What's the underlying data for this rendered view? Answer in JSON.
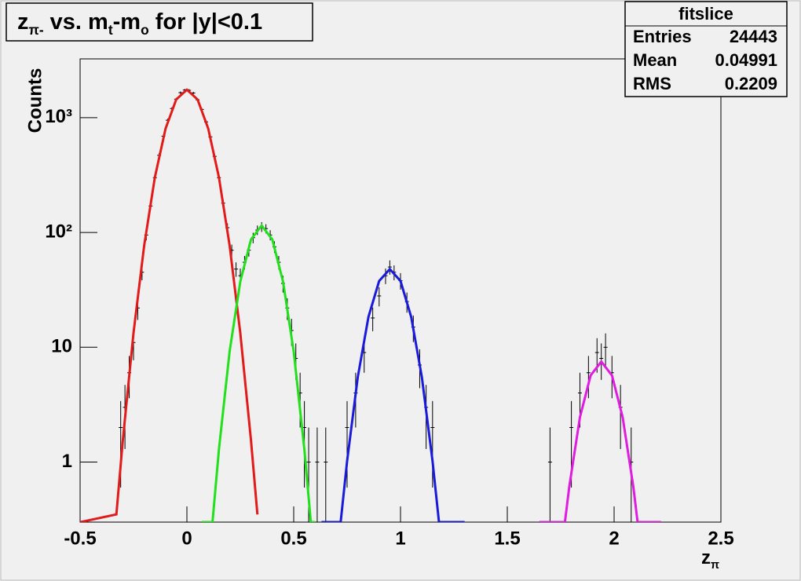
{
  "chart_data": {
    "type": "scatter",
    "title": [
      "z",
      "π-",
      " vs. m",
      "t",
      "-m",
      "o",
      " for |y|<0.1"
    ],
    "title_sub": [
      false,
      true,
      false,
      true,
      false,
      true,
      false
    ],
    "xlabel": [
      "z",
      "π"
    ],
    "xlabel_sub": [
      false,
      true
    ],
    "ylabel": "Counts",
    "xlim": [
      -0.5,
      2.5
    ],
    "ylim": [
      0.3,
      3250
    ],
    "log_y": true,
    "xticks": [
      -0.5,
      0,
      0.5,
      1,
      1.5,
      2,
      2.5
    ],
    "yticks": [
      1,
      10,
      {
        "value": 100,
        "label": "10²"
      },
      {
        "value": 1000,
        "label": "10³"
      }
    ],
    "color": "#000000",
    "x": [
      -0.31,
      -0.29,
      -0.27,
      -0.25,
      -0.23,
      -0.21,
      -0.19,
      -0.17,
      -0.15,
      -0.13,
      -0.11,
      -0.09,
      -0.07,
      -0.05,
      -0.03,
      -0.01,
      0.01,
      0.03,
      0.05,
      0.07,
      0.09,
      0.11,
      0.13,
      0.15,
      0.17,
      0.19,
      0.21,
      0.23,
      0.25,
      0.27,
      0.29,
      0.31,
      0.33,
      0.35,
      0.37,
      0.39,
      0.41,
      0.43,
      0.45,
      0.47,
      0.49,
      0.51,
      0.53,
      0.55,
      0.57,
      0.61,
      0.65,
      0.75,
      0.79,
      0.83,
      0.87,
      0.9,
      0.93,
      0.95,
      0.97,
      1.0,
      1.03,
      1.06,
      1.09,
      1.12,
      1.15,
      1.7,
      1.8,
      1.84,
      1.88,
      1.92,
      1.94,
      1.96,
      1.99,
      2.03,
      2.08
    ],
    "values": [
      2,
      3,
      6,
      11,
      22,
      45,
      95,
      170,
      300,
      470,
      690,
      950,
      1200,
      1450,
      1650,
      1740,
      1730,
      1640,
      1430,
      1180,
      920,
      680,
      460,
      300,
      180,
      110,
      70,
      48,
      42,
      55,
      70,
      90,
      105,
      112,
      108,
      95,
      75,
      55,
      36,
      22,
      14,
      8,
      4,
      2,
      1,
      1,
      1,
      2,
      4,
      9,
      18,
      28,
      42,
      50,
      45,
      38,
      25,
      15,
      7,
      3,
      2,
      1,
      2,
      4,
      6,
      9,
      8,
      10,
      6,
      3,
      1
    ],
    "errors": [
      1.4,
      1.7,
      2.4,
      3.3,
      4.7,
      6.7,
      9.7,
      13,
      17,
      22,
      26,
      31,
      35,
      38,
      41,
      42,
      42,
      40,
      38,
      34,
      30,
      26,
      21,
      17,
      13,
      10,
      8.4,
      6.9,
      6.5,
      7.4,
      8.4,
      9.5,
      10,
      11,
      10,
      9.7,
      8.7,
      7.4,
      6,
      4.7,
      3.7,
      2.8,
      2,
      1.4,
      1,
      1,
      1,
      1.4,
      2,
      3,
      4.2,
      5.3,
      6.5,
      7.1,
      6.7,
      6.2,
      5,
      3.9,
      2.6,
      1.7,
      1.4,
      1,
      1.4,
      2,
      2.4,
      3,
      2.8,
      3.2,
      2.4,
      1.7,
      1
    ],
    "fits": [
      {
        "color": "#e31a1a",
        "x": [
          -0.5,
          -0.33,
          -0.3,
          -0.25,
          -0.2,
          -0.15,
          -0.1,
          -0.05,
          0,
          0.05,
          0.1,
          0.15,
          0.2,
          0.25,
          0.3,
          0.33
        ],
        "values": [
          0.3,
          0.35,
          1.55,
          13.3,
          77,
          302,
          801,
          1440,
          1750,
          1440,
          801,
          302,
          77,
          13.3,
          1.55,
          0.35
        ]
      },
      {
        "color": "#22e01c",
        "x": [
          0.07,
          0.12,
          0.15,
          0.2,
          0.25,
          0.3,
          0.35,
          0.4,
          0.45,
          0.5,
          0.55,
          0.58,
          0.6
        ],
        "values": [
          0.3,
          0.3,
          1.29,
          9.2,
          37.4,
          86.8,
          115,
          86.8,
          37.4,
          9.2,
          1.29,
          0.3,
          0.3
        ]
      },
      {
        "color": "#1a1adc",
        "x": [
          0.63,
          0.72,
          0.75,
          0.8,
          0.85,
          0.9,
          0.95,
          1.0,
          1.05,
          1.1,
          1.15,
          1.18,
          1.3
        ],
        "values": [
          0.3,
          0.3,
          1.02,
          5.5,
          18.4,
          37.8,
          48,
          37.8,
          18.4,
          5.5,
          1.02,
          0.3,
          0.3
        ]
      },
      {
        "color": "#e01ce0",
        "x": [
          1.65,
          1.77,
          1.79,
          1.84,
          1.89,
          1.94,
          1.99,
          2.04,
          2.09,
          2.11,
          2.22
        ],
        "values": [
          0.3,
          0.3,
          0.61,
          2.46,
          5.68,
          7.5,
          5.68,
          2.46,
          0.61,
          0.3,
          0.3
        ]
      }
    ],
    "stats": {
      "title": "fitslice",
      "rows": [
        [
          "Entries",
          24443
        ],
        [
          "Mean",
          0.04991
        ],
        [
          "RMS",
          0.2209
        ]
      ]
    }
  }
}
